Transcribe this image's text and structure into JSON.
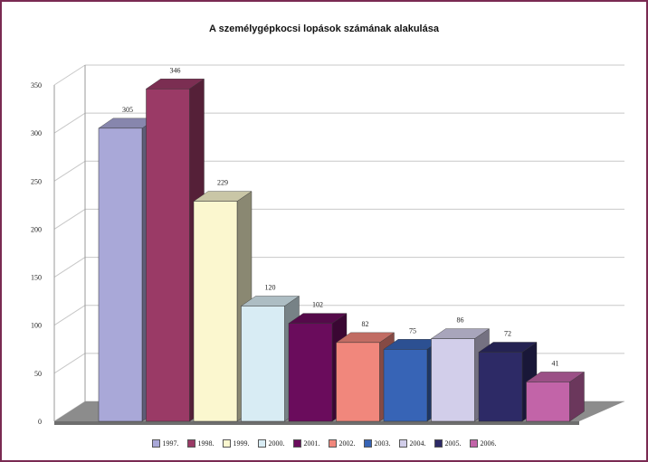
{
  "chart_data": {
    "type": "bar",
    "title": "A személygépkocsi lopások számának alakulása",
    "xlabel": "",
    "ylabel": "",
    "ylim": [
      0,
      350
    ],
    "yticks": [
      0,
      50,
      100,
      150,
      200,
      250,
      300,
      350
    ],
    "grid": true,
    "legend_position": "bottom",
    "categories": [
      "1997.",
      "1998.",
      "1999.",
      "2000.",
      "2001.",
      "2002.",
      "2003.",
      "2004.",
      "2005.",
      "2006."
    ],
    "values": [
      305,
      346,
      229,
      120,
      102,
      82,
      75,
      86,
      72,
      41
    ],
    "colors": [
      "#a9a8d8",
      "#9a3a66",
      "#fbf7cf",
      "#d8ecf4",
      "#6a0c5c",
      "#f1877c",
      "#3764b6",
      "#d2ceea",
      "#2d2a66",
      "#c264a8"
    ]
  }
}
